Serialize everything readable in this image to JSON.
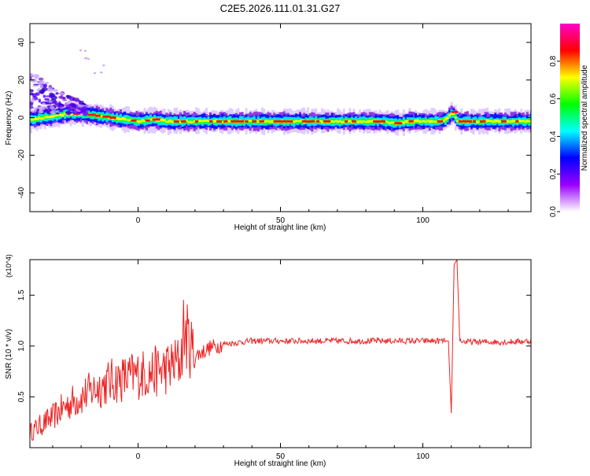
{
  "figure": {
    "title": "C2E5.2026.111.01.31.G27"
  },
  "chart_data": [
    {
      "type": "heatmap",
      "xlabel": "Height of straight line (km)",
      "ylabel": "Frequency (Hz)",
      "xlim": [
        -38,
        138
      ],
      "ylim": [
        -50,
        50
      ],
      "xticks": [
        0,
        50,
        100
      ],
      "yticks": [
        40,
        20,
        0,
        -20,
        -40
      ],
      "colorbar": {
        "label": "Normalized spectral amplitude",
        "range": [
          0,
          1
        ],
        "ticks": [
          "0.0",
          "0.2",
          "0.4",
          "0.6",
          "0.8"
        ],
        "colormap": [
          "#ffffff",
          "#9900ff",
          "#0000ff",
          "#00ffff",
          "#00ff00",
          "#ffff00",
          "#ff0000",
          "#ff00cc"
        ]
      },
      "ridge": {
        "description_points_x": [
          -38,
          -30,
          -25,
          -20,
          -15,
          -10,
          -5,
          0,
          5,
          10,
          20,
          30,
          50,
          70,
          85,
          90,
          95,
          100,
          105,
          108,
          110,
          112,
          120,
          130,
          138
        ],
        "frequency_y": [
          -1,
          1,
          2,
          2,
          1,
          0,
          -1,
          -2,
          -1,
          -2,
          -2,
          -2,
          -2,
          -2,
          -2,
          -3,
          -2,
          -2,
          -2,
          -1,
          3,
          -2,
          -2,
          -2,
          -2
        ]
      }
    },
    {
      "type": "line",
      "xlabel": "Height of straight line (km)",
      "ylabel": "SNR (10 * v/v)",
      "y_multiplier": "(x10^4)",
      "xlim": [
        -38,
        138
      ],
      "ylim": [
        0,
        1.85
      ],
      "xticks": [
        0,
        50,
        100
      ],
      "yticks": [
        "0.5",
        "1.0",
        "1.5"
      ],
      "series": [
        {
          "color": "#ee2222",
          "x": [
            -38,
            -30,
            -25,
            -20,
            -15,
            -10,
            -5,
            0,
            5,
            10,
            15,
            16,
            20,
            25,
            30,
            40,
            50,
            60,
            70,
            80,
            90,
            100,
            105,
            108,
            109,
            110,
            111,
            112,
            113,
            115,
            120,
            130,
            138
          ],
          "y": [
            0.15,
            0.3,
            0.42,
            0.5,
            0.58,
            0.65,
            0.68,
            0.72,
            0.74,
            0.78,
            0.85,
            1.16,
            0.9,
            0.98,
            1.02,
            1.05,
            1.05,
            1.05,
            1.05,
            1.05,
            1.05,
            1.05,
            1.05,
            1.05,
            1.05,
            0.34,
            1.8,
            1.85,
            1.05,
            1.04,
            1.04,
            1.04,
            1.05
          ]
        }
      ]
    }
  ]
}
